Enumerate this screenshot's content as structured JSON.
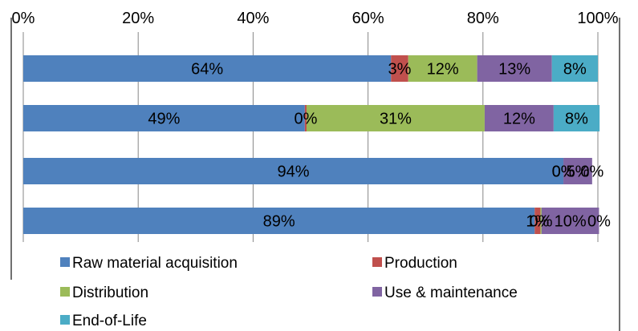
{
  "chart_data": {
    "type": "bar",
    "orientation": "horizontal",
    "stacked": "percent",
    "title": "",
    "xlabel": "",
    "ylabel": "",
    "xlim": [
      0,
      100
    ],
    "x_ticks": [
      "0%",
      "20%",
      "40%",
      "60%",
      "80%",
      "100%"
    ],
    "x_axis_position": "top",
    "grid": true,
    "legend_position": "bottom",
    "categories": [
      "",
      "",
      "",
      ""
    ],
    "series": [
      {
        "name": "Raw material acquisition",
        "color": "#4F81BD",
        "values": [
          64,
          49,
          94,
          89
        ],
        "labels": [
          "64%",
          "49%",
          "94%",
          "89%"
        ]
      },
      {
        "name": "Production",
        "color": "#C0504D",
        "values": [
          3,
          0.3,
          0,
          1
        ],
        "labels": [
          "3%",
          "0%",
          "0%",
          "1%"
        ]
      },
      {
        "name": "Distribution",
        "color": "#9BBB59",
        "values": [
          12,
          31,
          0,
          0.2
        ],
        "labels": [
          "12%",
          "31%",
          "0%",
          "0%"
        ]
      },
      {
        "name": "Use & maintenance",
        "color": "#8064A2",
        "values": [
          13,
          12,
          5,
          10
        ],
        "labels": [
          "13%",
          "12%",
          "5%",
          "10%"
        ]
      },
      {
        "name": "End-of-Life",
        "color": "#4BACC6",
        "values": [
          8,
          8,
          0,
          0
        ],
        "labels": [
          "8%",
          "8%",
          "0%",
          "0%"
        ]
      }
    ]
  }
}
